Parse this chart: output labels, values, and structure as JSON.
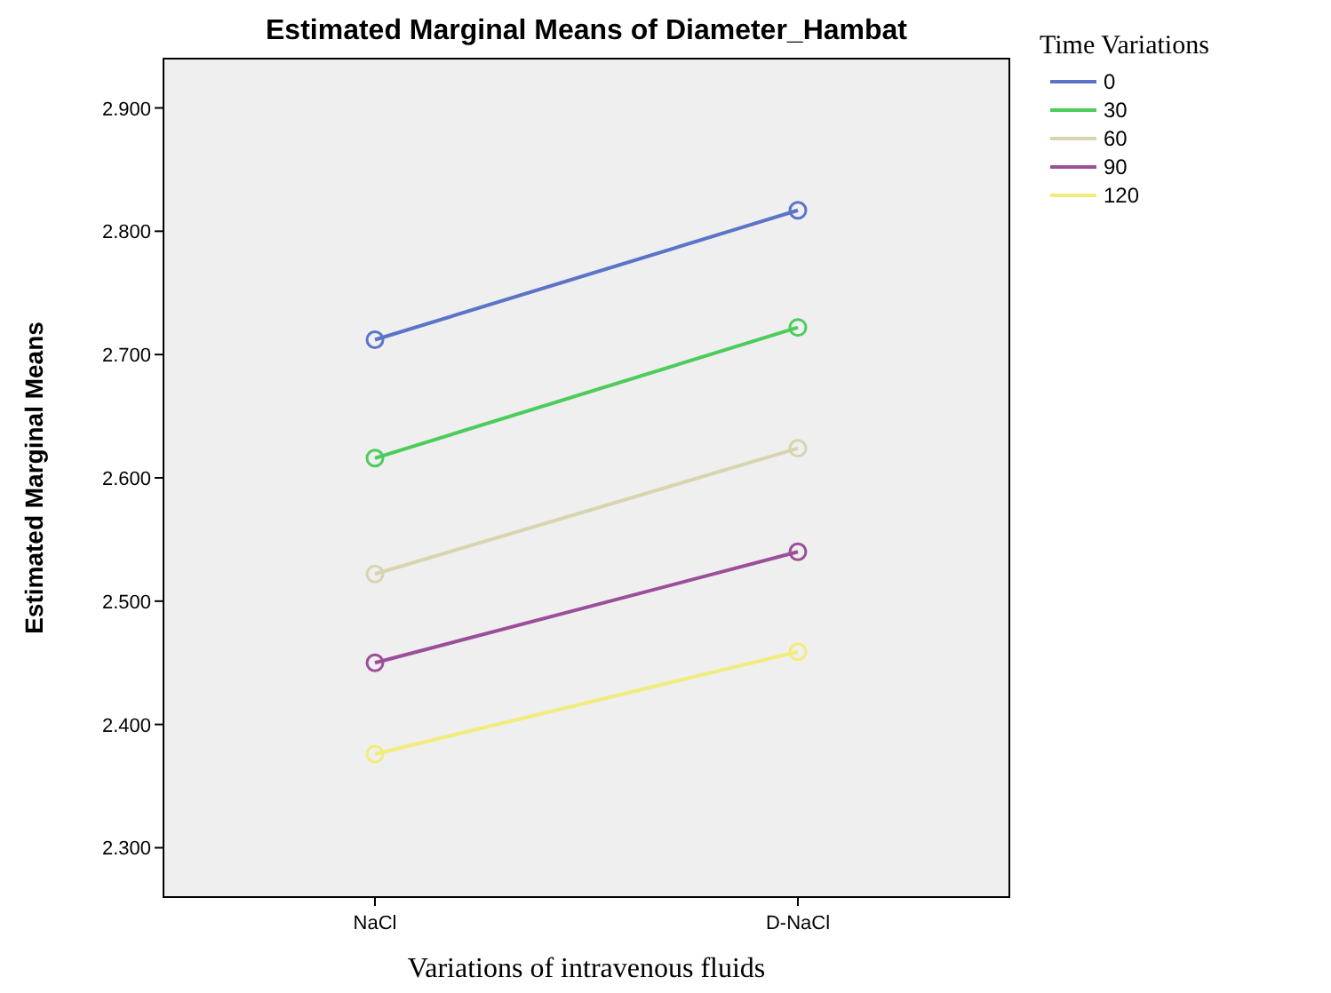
{
  "chart_data": {
    "type": "line",
    "title": "Estimated Marginal Means of Diameter_Hambat",
    "xlabel": "Variations of intravenous  fluids",
    "ylabel": "Estimated Marginal Means",
    "legend_title": "Time Variations",
    "categories": [
      "NaCl",
      "D-NaCl"
    ],
    "series": [
      {
        "name": "0",
        "color": "#5b74c8",
        "values": [
          2.712,
          2.817
        ]
      },
      {
        "name": "30",
        "color": "#4ccc5a",
        "values": [
          2.616,
          2.722
        ]
      },
      {
        "name": "60",
        "color": "#d8d4b0",
        "values": [
          2.522,
          2.624
        ]
      },
      {
        "name": "90",
        "color": "#9b4f9a",
        "values": [
          2.45,
          2.54
        ]
      },
      {
        "name": "120",
        "color": "#f2ec7c",
        "values": [
          2.376,
          2.459
        ]
      }
    ],
    "ylim": [
      2.26,
      2.94
    ],
    "yticks": [
      {
        "value": 2.3,
        "label": "2.300"
      },
      {
        "value": 2.4,
        "label": "2.400"
      },
      {
        "value": 2.5,
        "label": "2.500"
      },
      {
        "value": 2.6,
        "label": "2.600"
      },
      {
        "value": 2.7,
        "label": "2.700"
      },
      {
        "value": 2.8,
        "label": "2.800"
      },
      {
        "value": 2.9,
        "label": "2.900"
      }
    ],
    "marker": "circle",
    "line_style": "solid",
    "legend": "top right",
    "grid": false
  }
}
